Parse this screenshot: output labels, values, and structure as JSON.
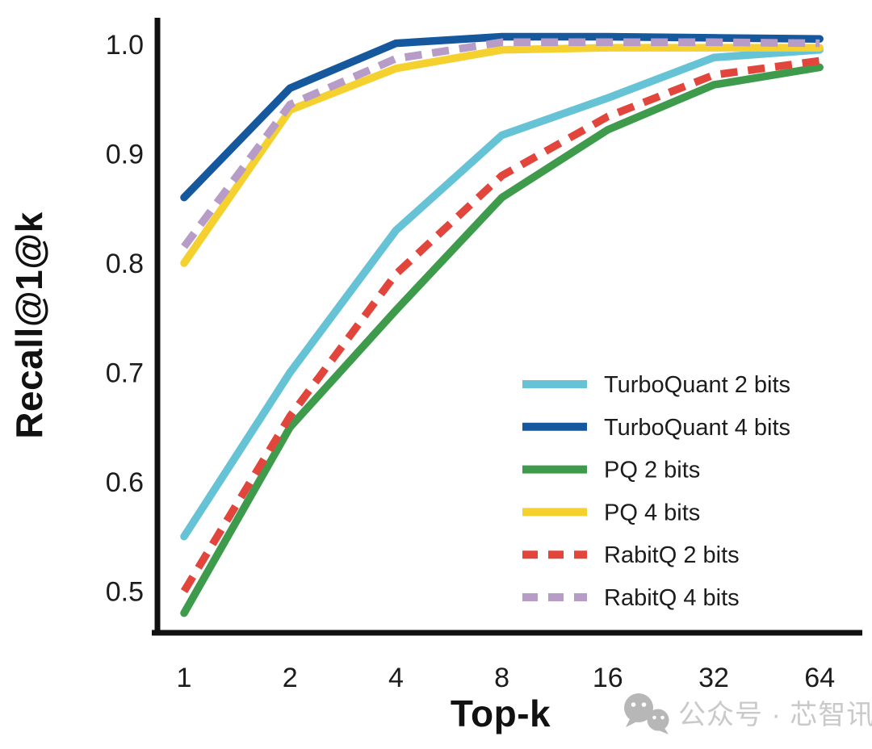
{
  "chart_data": {
    "type": "line",
    "title": "",
    "xlabel": "Top-k",
    "ylabel": "Recall@1@k",
    "x_scale": "log2",
    "x": [
      1,
      2,
      4,
      8,
      16,
      32,
      64
    ],
    "xtick_labels": [
      "1",
      "2",
      "4",
      "8",
      "16",
      "32",
      "64"
    ],
    "ytick_values": [
      1.0,
      0.9,
      0.8,
      0.7,
      0.6,
      0.5
    ],
    "ytick_labels": [
      "1.0",
      "0.9",
      "0.8",
      "0.7",
      "0.6",
      "0.5"
    ],
    "ylim": [
      0.46,
      1.025
    ],
    "grid": false,
    "legend_position": "inside lower right",
    "series": [
      {
        "name": "TurboQuant 2 bits",
        "color": "#66c3d6",
        "style": "solid",
        "values": [
          0.55,
          0.7,
          0.83,
          0.917,
          0.951,
          0.988,
          0.995
        ]
      },
      {
        "name": "TurboQuant 4 bits",
        "color": "#15589d",
        "style": "solid",
        "values": [
          0.86,
          0.96,
          1.001,
          1.007,
          1.007,
          1.006,
          1.005
        ]
      },
      {
        "name": "PQ 2 bits",
        "color": "#3f9b4c",
        "style": "solid",
        "values": [
          0.48,
          0.65,
          0.757,
          0.86,
          0.922,
          0.963,
          0.979
        ]
      },
      {
        "name": "PQ 4 bits",
        "color": "#f4d12f",
        "style": "solid",
        "values": [
          0.8,
          0.94,
          0.978,
          0.995,
          0.997,
          0.997,
          0.997
        ]
      },
      {
        "name": "RabitQ 2 bits",
        "color": "#e2453c",
        "style": "dashed",
        "values": [
          0.5,
          0.66,
          0.79,
          0.88,
          0.934,
          0.972,
          0.985
        ]
      },
      {
        "name": "RabitQ 4 bits",
        "color": "#b69cc7",
        "style": "dashed",
        "values": [
          0.815,
          0.945,
          0.987,
          1.002,
          1.002,
          1.002,
          1.001
        ]
      }
    ]
  },
  "watermark": {
    "icon": "wechat-icon",
    "text": "公众号 · 芯智讯"
  }
}
